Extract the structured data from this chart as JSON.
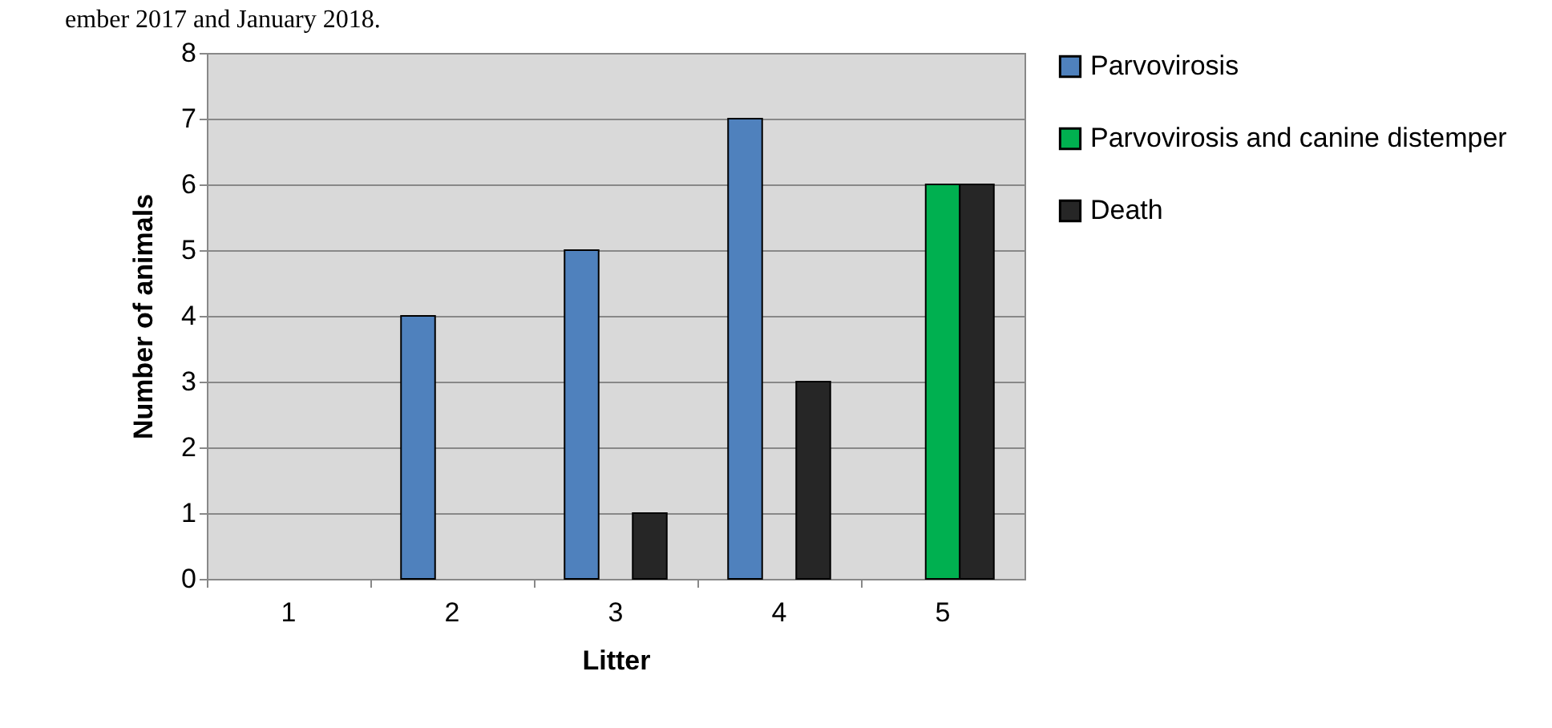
{
  "chart_data": {
    "type": "bar",
    "xlabel": "Litter",
    "ylabel": "Number of animals",
    "annotations": [
      "ember 2017 and January 2018."
    ],
    "categories": [
      "1",
      "2",
      "3",
      "4",
      "5"
    ],
    "series": [
      {
        "name": "Parvovirosis",
        "color": "#4f81bd",
        "values": [
          null,
          4,
          5,
          7,
          null
        ]
      },
      {
        "name": "Parvovirosis and canine distemper",
        "color": "#00b050",
        "values": [
          null,
          null,
          null,
          null,
          6
        ]
      },
      {
        "name": "Death",
        "color": "#262626",
        "values": [
          null,
          null,
          1,
          3,
          6
        ]
      }
    ],
    "ylim": [
      0,
      8
    ],
    "yticks": [
      0,
      1,
      2,
      3,
      4,
      5,
      6,
      7,
      8
    ],
    "grid": "y",
    "legend": "right"
  }
}
